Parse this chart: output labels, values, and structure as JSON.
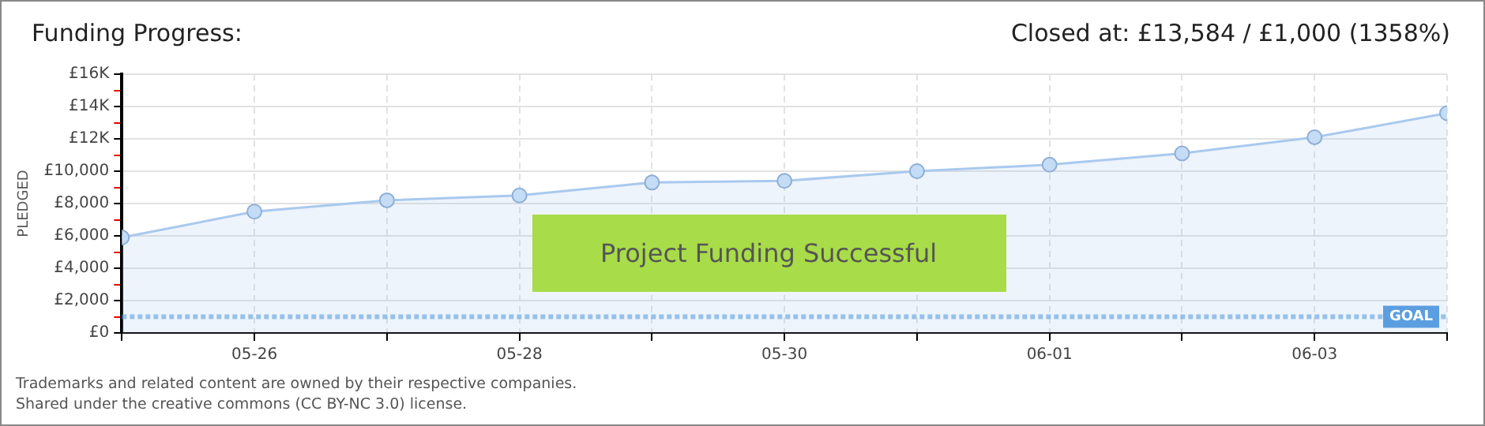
{
  "chart_data": {
    "type": "area",
    "title": "Funding Progress:",
    "subtitle": "Closed at:  £13,584 / £1,000 (1358%)",
    "ylabel": "PLEDGED",
    "x": [
      "--05-25",
      "--05-26",
      "--05-27",
      "--05-28",
      "--05-29",
      "--05-30",
      "--05-31",
      "--06-01",
      "--06-02",
      "--06-03",
      "--06-04"
    ],
    "series": [
      {
        "color": "#a9c9ee",
        "values": [
          5900,
          7500,
          8200,
          8500,
          9300,
          9400,
          10000,
          10400,
          11100,
          12100,
          13584
        ]
      }
    ],
    "xlim": [
      "--05-25",
      "--06-04"
    ],
    "xticks": [
      {
        "value": "--05-25",
        "label": null
      },
      {
        "value": "--05-26",
        "label": "05-26"
      },
      {
        "value": "--05-27",
        "label": null
      },
      {
        "value": "--05-28",
        "label": "05-28"
      },
      {
        "value": "--05-29",
        "label": null
      },
      {
        "value": "--05-30",
        "label": "05-30"
      },
      {
        "value": "--05-31",
        "label": null
      },
      {
        "value": "--06-01",
        "label": "06-01"
      },
      {
        "value": "--06-02",
        "label": null
      },
      {
        "value": "--06-03",
        "label": "06-03"
      },
      {
        "value": "--06-04",
        "label": null
      }
    ],
    "ylim": [
      0,
      16000
    ],
    "yticks": [
      {
        "value": 0,
        "label": "£0"
      },
      {
        "value": 1000,
        "label": null
      },
      {
        "value": 2000,
        "label": "£2,000"
      },
      {
        "value": 3000,
        "label": null
      },
      {
        "value": 4000,
        "label": "£4,000"
      },
      {
        "value": 5000,
        "label": null
      },
      {
        "value": 6000,
        "label": "£6,000"
      },
      {
        "value": 7000,
        "label": null
      },
      {
        "value": 8000,
        "label": "£8,000"
      },
      {
        "value": 9000,
        "label": null
      },
      {
        "value": 10000,
        "label": "£10,000"
      },
      {
        "value": 11000,
        "label": null
      },
      {
        "value": 12000,
        "label": "£12K"
      },
      {
        "value": 13000,
        "label": null
      },
      {
        "value": 14000,
        "label": "£14K"
      },
      {
        "value": 15000,
        "label": null
      },
      {
        "value": 16000,
        "label": "£16K"
      }
    ],
    "ref_lines": [
      {
        "axis": "y",
        "value": 1000,
        "label": "GOAL",
        "color": "#5b9ee0",
        "line_style": "dotted"
      }
    ],
    "annotations": [
      "Project Funding Successful",
      "Trademarks and related content are owned by their respective companies.",
      "Shared under the creative commons (CC BY-NC 3.0) license."
    ],
    "grid": true,
    "marker": "circle",
    "legend": false
  }
}
